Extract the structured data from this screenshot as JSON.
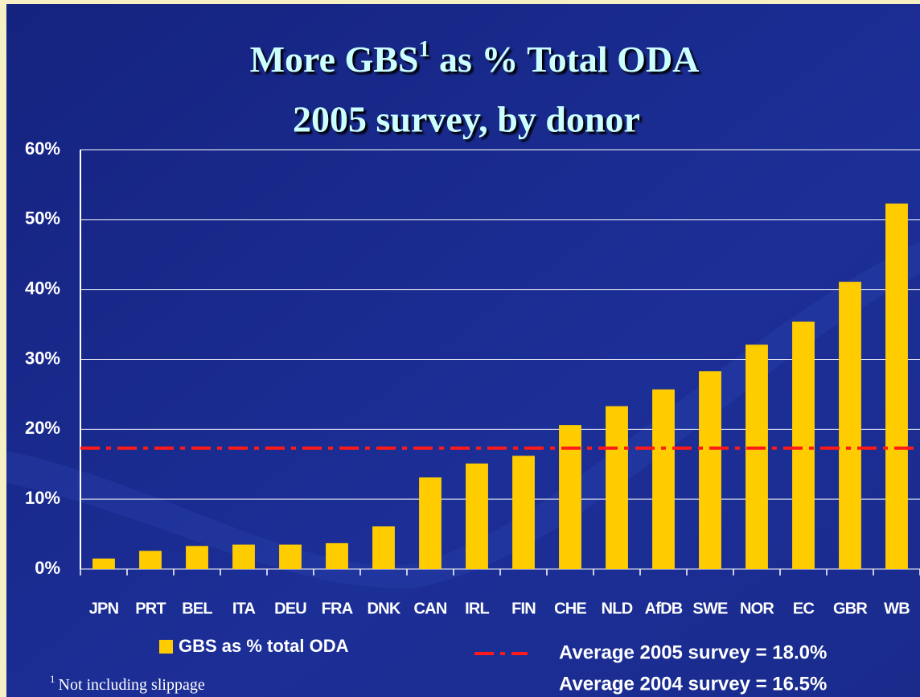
{
  "chart_data": {
    "type": "bar",
    "title": [
      "More GBS",
      "1",
      " as % Total ODA"
    ],
    "subtitle": "2005 survey, by donor",
    "categories": [
      "JPN",
      "PRT",
      "BEL",
      "ITA",
      "DEU",
      "FRA",
      "DNK",
      "CAN",
      "IRL",
      "FIN",
      "CHE",
      "NLD",
      "AfDB",
      "SWE",
      "NOR",
      "EC",
      "GBR",
      "WB"
    ],
    "series": [
      {
        "name": "GBS as % total ODA",
        "color": "#ffcc00",
        "values": [
          1.5,
          2.6,
          3.3,
          3.5,
          3.5,
          3.7,
          6.1,
          13.1,
          15.1,
          16.2,
          20.6,
          23.3,
          25.7,
          28.3,
          32.1,
          35.4,
          41.1,
          52.3
        ]
      }
    ],
    "ylim": [
      0,
      60
    ],
    "yticks": [
      {
        "value": 0,
        "label": "0%"
      },
      {
        "value": 10,
        "label": "10%"
      },
      {
        "value": 20,
        "label": "20%"
      },
      {
        "value": 30,
        "label": "30%"
      },
      {
        "value": 40,
        "label": "40%"
      },
      {
        "value": 50,
        "label": "50%"
      },
      {
        "value": 60,
        "label": "60%"
      }
    ],
    "grid": true,
    "average_line": {
      "value": 17.3,
      "color": "#ff1a1a",
      "labels": [
        "Average 2005 survey = 18.0%",
        "Average 2004 survey = 16.5%"
      ]
    },
    "footnote": [
      "1",
      "Not including slippage"
    ]
  }
}
